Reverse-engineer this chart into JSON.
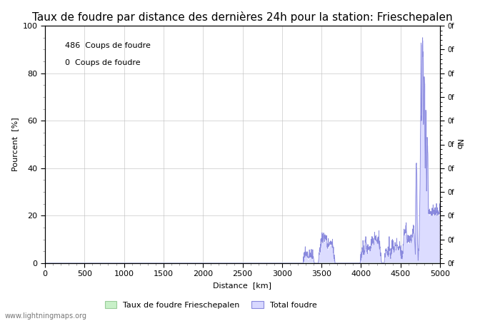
{
  "title": "Taux de foudre par distance des dernières 24h pour la station: Frieschepalen",
  "xlabel": "Distance  [km]",
  "ylabel_left": "Pourcent  [%]",
  "ylabel_right": "Nb",
  "legend_label1": "Taux de foudre Frieschepalen",
  "legend_label2": "Total foudre",
  "legend_color1": "#c8f0c8",
  "legend_color2": "#d8d8ff",
  "annotation1": "486  Coups de foudre",
  "annotation2": "0  Coups de foudre",
  "watermark": "www.lightningmaps.org",
  "xlim": [
    0,
    5000
  ],
  "ylim": [
    0,
    100
  ],
  "line_color": "#8888dd",
  "fill_color": "#dcdcff",
  "bg_color": "#ffffff",
  "grid_color": "#bbbbbb",
  "title_fontsize": 11,
  "label_fontsize": 8,
  "tick_fontsize": 8,
  "annotation_fontsize": 8,
  "watermark_fontsize": 7
}
